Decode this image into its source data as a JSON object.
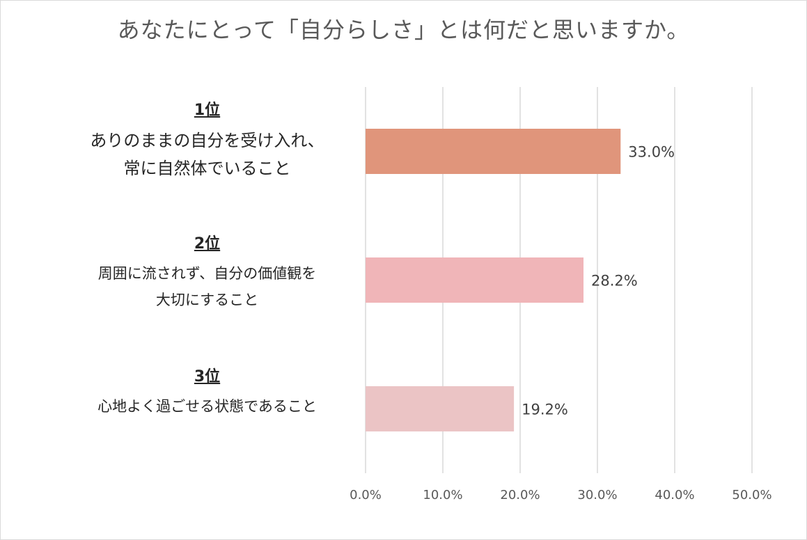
{
  "title": "あなたにとって「自分らしさ」とは何だと思いますか。",
  "chart_data": {
    "type": "bar",
    "orientation": "horizontal",
    "title": "あなたにとって「自分らしさ」とは何だと思いますか。",
    "categories": [
      {
        "rank": "1位",
        "lines": [
          "ありのままの自分を受け入れ、",
          "常に自然体でいること"
        ]
      },
      {
        "rank": "2位",
        "lines": [
          "周囲に流されず、自分の価値観を",
          "大切にすること"
        ]
      },
      {
        "rank": "3位",
        "lines": [
          "心地よく過ごせる状態であること"
        ]
      }
    ],
    "values": [
      33.0,
      28.2,
      19.2
    ],
    "value_labels": [
      "33.0%",
      "28.2%",
      "19.2%"
    ],
    "colors": [
      "#e0957b",
      "#f0b5b8",
      "#ebc4c5"
    ],
    "xlim": [
      0,
      50
    ],
    "xticks": [
      0,
      10,
      20,
      30,
      40,
      50
    ],
    "xtick_labels": [
      "0.0%",
      "10.0%",
      "20.0%",
      "30.0%",
      "40.0%",
      "50.0%"
    ],
    "grid": "vertical",
    "legend": "none",
    "xlabel": "",
    "ylabel": ""
  }
}
